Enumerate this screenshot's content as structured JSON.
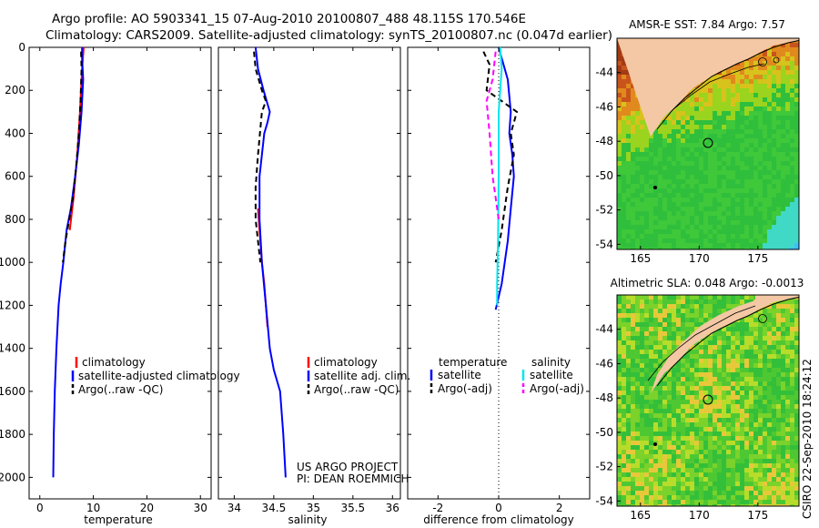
{
  "header": {
    "line1": "Argo profile: AO 5903341_15 07-Aug-2010 20100807_488 48.115S 170.546E",
    "line2": "Climatology: CARS2009. Satellite-adjusted climatology: synTS_20100807.nc (0.047d earlier)"
  },
  "side_stamp": "CSIRO 22-Sep-2010 18:24:12",
  "credits": {
    "line1": "US ARGO PROJECT",
    "line2": "PI: DEAN ROEMMICH"
  },
  "colors": {
    "climatology": "#ff0000",
    "satellite": "#0000ff",
    "argo": "#000000",
    "sal_satellite": "#00e5ee",
    "sal_argo": "#ff00ff",
    "land": "#f4c8a4"
  },
  "chart_data": [
    {
      "type": "line",
      "title": "",
      "xlabel": "temperature",
      "ylabel": "",
      "xlim": [
        -2,
        32
      ],
      "ylim": [
        0,
        2100
      ],
      "xticks": [
        0,
        10,
        20,
        30
      ],
      "yticks": [
        0,
        200,
        400,
        600,
        800,
        1000,
        1200,
        1400,
        1600,
        1800,
        2000
      ],
      "legend": [
        "climatology",
        "satellite-adjusted climatology",
        "Argo(..raw -QC)"
      ],
      "series": [
        {
          "name": "climatology",
          "color": "#ff0000",
          "style": "solid",
          "x": [
            8.2,
            7.9,
            7.5,
            7.0,
            6.3,
            5.6
          ],
          "y": [
            0,
            100,
            300,
            500,
            700,
            850
          ]
        },
        {
          "name": "satellite-adjusted climatology",
          "color": "#0000ff",
          "style": "solid",
          "x": [
            7.9,
            7.9,
            8.1,
            7.8,
            7.3,
            6.6,
            5.8,
            5.0,
            4.4,
            3.9,
            3.5,
            3.1,
            2.8,
            2.6,
            2.5
          ],
          "y": [
            0,
            50,
            150,
            300,
            450,
            600,
            750,
            850,
            1000,
            1100,
            1200,
            1400,
            1600,
            1800,
            2000
          ]
        },
        {
          "name": "Argo(..raw -QC)",
          "color": "#000000",
          "style": "dashed",
          "x": [
            7.7,
            7.8,
            7.6,
            7.3,
            6.8,
            6.2,
            5.5,
            4.8,
            4.3
          ],
          "y": [
            20,
            100,
            250,
            400,
            550,
            700,
            800,
            900,
            1000
          ]
        }
      ]
    },
    {
      "type": "line",
      "title": "",
      "xlabel": "salinity",
      "ylabel": "",
      "xlim": [
        33.8,
        36.1
      ],
      "ylim": [
        0,
        2100
      ],
      "xticks": [
        34,
        34.5,
        35,
        35.5,
        36
      ],
      "xtick_labels": [
        "34",
        "34.5",
        "35",
        "35.5",
        "36"
      ],
      "legend": [
        "climatology",
        "satellite adj. clim.",
        "Argo(..raw -QC)"
      ],
      "series": [
        {
          "name": "climatology",
          "color": "#ff0000",
          "style": "solid",
          "x": [
            34.3,
            34.32,
            34.35,
            34.38,
            34.4,
            34.42
          ],
          "y": [
            750,
            850,
            1000,
            1100,
            1200,
            1300
          ]
        },
        {
          "name": "satellite adj. clim.",
          "color": "#0000ff",
          "style": "solid",
          "x": [
            34.27,
            34.3,
            34.37,
            34.45,
            34.42,
            34.38,
            34.35,
            34.32,
            34.32,
            34.35,
            34.4,
            34.45,
            34.5,
            34.58,
            34.62,
            34.65
          ],
          "y": [
            0,
            100,
            200,
            300,
            350,
            400,
            500,
            600,
            800,
            1000,
            1200,
            1400,
            1500,
            1600,
            1800,
            2000
          ]
        },
        {
          "name": "Argo(..raw -QC)",
          "color": "#000000",
          "style": "dashed",
          "x": [
            34.25,
            34.27,
            34.35,
            34.4,
            34.35,
            34.3,
            34.27,
            34.27,
            34.3,
            34.33
          ],
          "y": [
            20,
            100,
            200,
            250,
            300,
            500,
            650,
            800,
            900,
            1000
          ]
        }
      ]
    },
    {
      "type": "line",
      "title": "",
      "xlabel": "difference from climatology",
      "ylabel": "",
      "xlim": [
        -3,
        3
      ],
      "ylim": [
        0,
        2100
      ],
      "xticks": [
        -2,
        0,
        2
      ],
      "legend_headers": [
        "temperature",
        "salinity"
      ],
      "legend": [
        "satellite",
        "Argo(-adj)",
        "satellite",
        "Argo(-adj)"
      ],
      "series": [
        {
          "name": "temperature satellite",
          "color": "#0000ff",
          "style": "solid",
          "x": [
            0,
            0.1,
            0.3,
            0.4,
            0.35,
            0.45,
            0.5,
            0.4,
            0.3,
            0.1,
            -0.1
          ],
          "y": [
            0,
            50,
            150,
            300,
            400,
            500,
            600,
            750,
            900,
            1100,
            1220
          ]
        },
        {
          "name": "temperature Argo(-adj)",
          "color": "#000000",
          "style": "dashed",
          "x": [
            -0.5,
            -0.3,
            -0.4,
            0.2,
            0.6,
            0.4,
            0.5,
            0.3,
            0.1,
            -0.1
          ],
          "y": [
            20,
            80,
            200,
            260,
            300,
            400,
            500,
            650,
            850,
            1000
          ]
        },
        {
          "name": "salinity satellite",
          "color": "#00e5ee",
          "style": "solid",
          "x": [
            0.05,
            0.1,
            0,
            0,
            -0.02,
            -0.05,
            -0.05
          ],
          "y": [
            0,
            100,
            300,
            600,
            900,
            1100,
            1200
          ]
        },
        {
          "name": "salinity Argo(-adj)",
          "color": "#ff00ff",
          "style": "dashed",
          "x": [
            -0.1,
            -0.2,
            -0.4,
            -0.3,
            -0.2,
            -0.1,
            0
          ],
          "y": [
            20,
            150,
            250,
            400,
            600,
            700,
            800
          ]
        }
      ]
    },
    {
      "type": "heatmap",
      "title": "AMSR-E SST: 7.84 Argo: 7.57",
      "xlim": [
        163,
        178.5
      ],
      "ylim": [
        -54.3,
        -42
      ],
      "xticks": [
        165,
        170,
        175
      ],
      "yticks": [
        -44,
        -46,
        -48,
        -50,
        -52,
        -54
      ]
    },
    {
      "type": "heatmap",
      "title": "Altimetric SLA: 0.048 Argo: -0.0013",
      "xlim": [
        163,
        178.5
      ],
      "ylim": [
        -54.3,
        -42
      ],
      "xticks": [
        165,
        170,
        175
      ],
      "yticks": [
        -44,
        -46,
        -48,
        -50,
        -52,
        -54
      ]
    }
  ]
}
